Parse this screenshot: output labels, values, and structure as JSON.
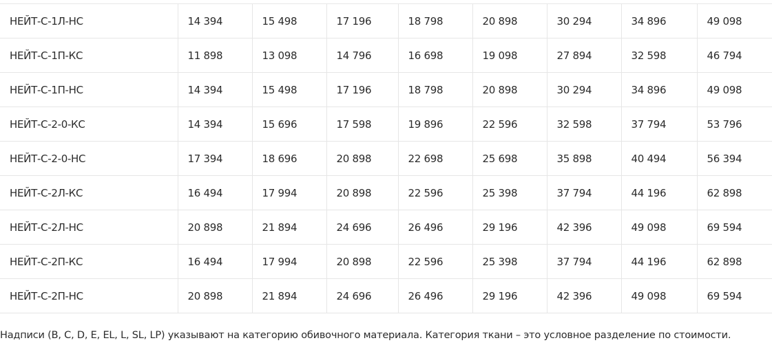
{
  "table": {
    "rows": [
      [
        "НЕЙТ-С-1Л-НС",
        "14 394",
        "15 498",
        "17 196",
        "18 798",
        "20 898",
        "30 294",
        "34 896",
        "49 098"
      ],
      [
        "НЕЙТ-С-1П-КС",
        "11 898",
        "13 098",
        "14 796",
        "16 698",
        "19 098",
        "27 894",
        "32 598",
        "46 794"
      ],
      [
        "НЕЙТ-С-1П-НС",
        "14 394",
        "15 498",
        "17 196",
        "18 798",
        "20 898",
        "30 294",
        "34 896",
        "49 098"
      ],
      [
        "НЕЙТ-С-2-0-КС",
        "14 394",
        "15 696",
        "17 598",
        "19 896",
        "22 596",
        "32 598",
        "37 794",
        "53 796"
      ],
      [
        "НЕЙТ-С-2-0-НС",
        "17 394",
        "18 696",
        "20 898",
        "22 698",
        "25 698",
        "35 898",
        "40 494",
        "56 394"
      ],
      [
        "НЕЙТ-С-2Л-КС",
        "16 494",
        "17 994",
        "20 898",
        "22 596",
        "25 398",
        "37 794",
        "44 196",
        "62 898"
      ],
      [
        "НЕЙТ-С-2Л-НС",
        "20 898",
        "21 894",
        "24 696",
        "26 496",
        "29 196",
        "42 396",
        "49 098",
        "69 594"
      ],
      [
        "НЕЙТ-С-2П-КС",
        "16 494",
        "17 994",
        "20 898",
        "22 596",
        "25 398",
        "37 794",
        "44 196",
        "62 898"
      ],
      [
        "НЕЙТ-С-2П-НС",
        "20 898",
        "21 894",
        "24 696",
        "26 496",
        "29 196",
        "42 396",
        "49 098",
        "69 594"
      ]
    ]
  },
  "note": "Надписи (B, C, D, E, EL, L, SL, LP) указывают на категорию обивочного материала. Категория ткани – это условное разделение по стоимости."
}
